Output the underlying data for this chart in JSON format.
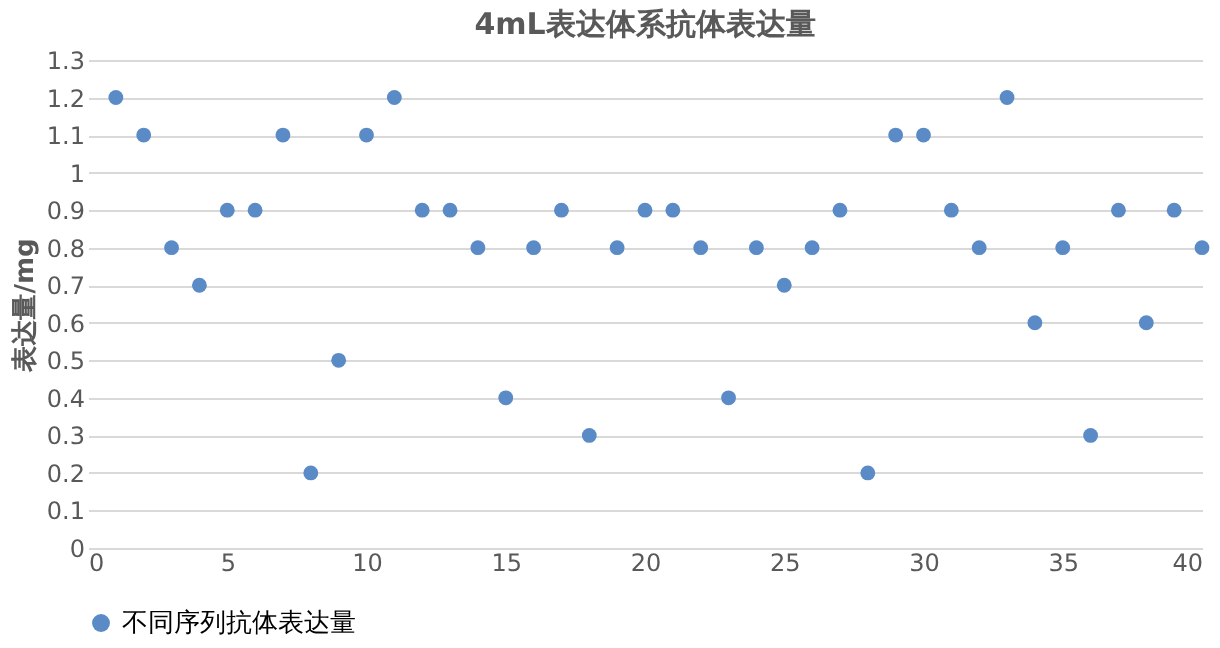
{
  "chart_data": {
    "type": "scatter",
    "title": "4mL表达体系抗体表达量",
    "ylabel": "表达量/mg",
    "x": [
      1,
      2,
      3,
      4,
      5,
      6,
      7,
      8,
      9,
      10,
      11,
      12,
      13,
      14,
      15,
      16,
      17,
      18,
      19,
      20,
      21,
      22,
      23,
      24,
      25,
      26,
      27,
      28,
      29,
      30,
      31,
      32,
      33,
      34,
      35,
      36,
      37,
      38,
      39,
      40
    ],
    "series": [
      {
        "name": "不同序列抗体表达量",
        "color": "#5b8bc7",
        "values": [
          1.2,
          1.1,
          0.8,
          0.7,
          0.9,
          0.9,
          1.1,
          0.2,
          0.5,
          1.1,
          1.2,
          0.9,
          0.9,
          0.8,
          0.4,
          0.8,
          0.9,
          0.3,
          0.8,
          0.9,
          0.9,
          0.8,
          0.4,
          0.8,
          0.7,
          0.8,
          0.9,
          0.2,
          1.1,
          1.1,
          0.9,
          0.8,
          1.2,
          0.6,
          0.8,
          0.3,
          0.9,
          0.6,
          0.9,
          0.8
        ]
      }
    ],
    "xlim": [
      0,
      40
    ],
    "xticks": [
      0,
      5,
      10,
      15,
      20,
      25,
      30,
      35,
      40
    ],
    "ylim": [
      0,
      1.3
    ],
    "yticks": [
      0,
      0.1,
      0.2,
      0.3,
      0.4,
      0.5,
      0.6,
      0.7,
      0.8,
      0.9,
      1,
      1.1,
      1.2,
      1.3
    ],
    "grid": "y",
    "legend": "bottom",
    "marker": "circle"
  }
}
